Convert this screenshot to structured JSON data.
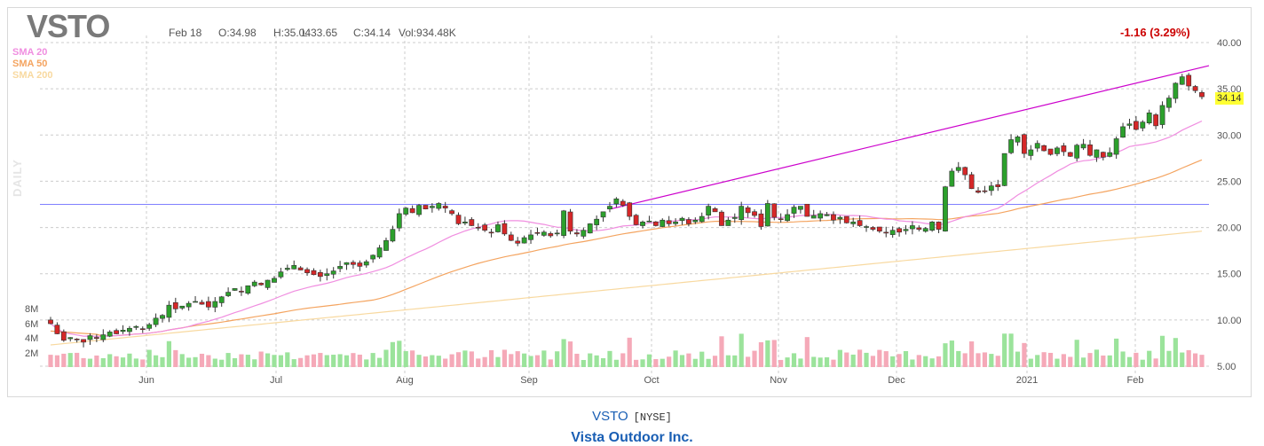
{
  "header": {
    "ticker": "VSTO",
    "date": "Feb 18",
    "open": "O:34.98",
    "high": "H:35.04",
    "low": "L:33.65",
    "close": "C:34.14",
    "volume": "Vol:934.48K",
    "change": "-1.16 (3.29%)"
  },
  "legend": {
    "sma20": "SMA 20",
    "sma50": "SMA 50",
    "sma200": "SMA 200",
    "daily": "DAILY"
  },
  "last_price_tag": "34.14",
  "colors": {
    "up": "#2ca02c",
    "down": "#d62728",
    "sma20": "#f08ee0",
    "sma50": "#f4a460",
    "sma200": "#f8d9a0",
    "trendline": "#cc00cc",
    "hline": "#8080ff",
    "vol_up": "#9be39b",
    "vol_down": "#f5a9b8"
  },
  "footer": {
    "symbol": "VSTO",
    "exchange": "[NYSE]",
    "name": "Vista Outdoor Inc."
  },
  "chart_data": {
    "type": "candlestick",
    "price_axis": {
      "min": 5,
      "max": 40,
      "ticks": [
        "40.00",
        "35.00",
        "30.00",
        "25.00",
        "20.00",
        "15.00",
        "10.00",
        "5.00"
      ]
    },
    "volume_axis": {
      "ticks": [
        "8M",
        "6M",
        "4M",
        "2M"
      ]
    },
    "x_labels": [
      "Jun",
      "Jul",
      "Aug",
      "Sep",
      "Oct",
      "Nov",
      "Dec",
      "2021",
      "Feb"
    ],
    "closes": [
      9.6,
      8.5,
      7.8,
      8.1,
      7.9,
      7.6,
      8.3,
      8.0,
      8.4,
      8.7,
      8.5,
      8.9,
      9.1,
      9.3,
      9.0,
      9.5,
      10.2,
      10.5,
      11.6,
      11.2,
      11.5,
      11.8,
      12.0,
      11.7,
      11.4,
      12.0,
      12.5,
      13.0,
      13.4,
      13.1,
      13.7,
      14.1,
      13.8,
      14.3,
      14.5,
      15.2,
      15.6,
      15.9,
      15.4,
      15.1,
      14.9,
      14.7,
      15.0,
      15.3,
      15.8,
      16.2,
      16.0,
      15.8,
      16.3,
      17.0,
      17.8,
      18.6,
      19.8,
      21.5,
      22.1,
      21.6,
      22.4,
      22.0,
      22.3,
      22.6,
      22.1,
      21.5,
      20.4,
      20.6,
      20.2,
      20.0,
      19.7,
      19.4,
      20.3,
      19.3,
      18.6,
      18.3,
      18.9,
      19.2,
      19.4,
      19.5,
      19.1,
      19.4,
      21.8,
      19.6,
      19.3,
      19.7,
      20.4,
      20.9,
      21.7,
      22.3,
      23.1,
      22.4,
      21.2,
      20.3,
      20.6,
      20.7,
      20.2,
      20.8,
      20.4,
      20.6,
      21.0,
      20.4,
      20.8,
      21.2,
      22.3,
      21.7,
      20.2,
      20.8,
      21.1,
      22.3,
      21.6,
      21.3,
      20.1,
      22.6,
      21.1,
      20.9,
      21.4,
      22.2,
      22.3,
      21.2,
      21.3,
      21.5,
      21.4,
      20.8,
      21.1,
      20.5,
      20.6,
      20.2,
      20.1,
      19.8,
      19.6,
      19.4,
      19.7,
      19.5,
      19.8,
      20.2,
      19.8,
      19.9,
      20.6,
      19.8,
      24.4,
      26.1,
      26.5,
      25.7,
      24.2,
      23.8,
      23.9,
      24.5,
      24.4,
      28.0,
      29.5,
      29.8,
      28.0,
      28.4,
      29.1,
      28.3,
      27.9,
      28.6,
      28.2,
      27.7,
      28.9,
      29.0,
      27.8,
      28.4,
      27.6,
      28.1,
      29.6,
      30.9,
      31.2,
      30.6,
      31.4,
      32.4,
      31.0,
      33.2,
      34.0,
      35.6,
      36.3,
      35.3,
      34.8,
      34.14
    ]
  }
}
